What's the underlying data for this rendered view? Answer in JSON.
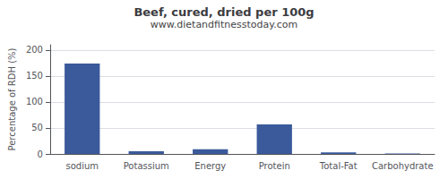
{
  "chart_data": {
    "type": "bar",
    "title": "Beef, cured, dried per 100g",
    "subtitle": "www.dietandfitnesstoday.com",
    "ylabel": "Percentage of RDH (%)",
    "categories": [
      "sodium",
      "Potassium",
      "Energy",
      "Protein",
      "Total-Fat",
      "Carbohydrate"
    ],
    "values": [
      174,
      5,
      9,
      57,
      3,
      1
    ],
    "color": "#3a5a9b",
    "ylim": [
      0,
      210
    ],
    "yticks": [
      0,
      50,
      100,
      150,
      200
    ],
    "grid": true
  }
}
